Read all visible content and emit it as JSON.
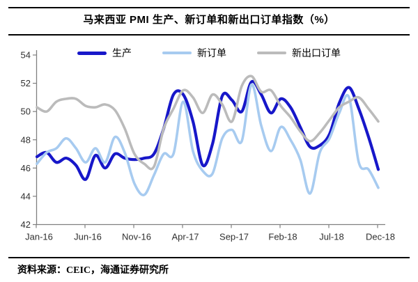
{
  "header": {
    "title": "马来西亚 PMI 生产、新订单和新出口订单指数（%）"
  },
  "footer": {
    "source": "资料来源：CEIC，海通证券研究所"
  },
  "colors": {
    "production": "#1717c9",
    "new_orders": "#a7cbf0",
    "new_export_orders": "#bbbbbb",
    "axis": "#7f7f7f",
    "tick_text": "#303030",
    "rule": "#000000"
  },
  "chart_data": {
    "type": "line",
    "title": "马来西亚 PMI 生产、新订单和新出口订单指数（%）",
    "xlabel": "",
    "ylabel": "",
    "ylim": [
      42,
      54
    ],
    "y_tick_step": 2,
    "y_tick_labels": [
      "42",
      "44",
      "46",
      "48",
      "50",
      "52",
      "54"
    ],
    "grid": false,
    "legend_position": "top",
    "x_labels": [
      "Jan-16",
      "Feb-16",
      "Mar-16",
      "Apr-16",
      "May-16",
      "Jun-16",
      "Jul-16",
      "Aug-16",
      "Sep-16",
      "Oct-16",
      "Nov-16",
      "Dec-16",
      "Jan-17",
      "Feb-17",
      "Mar-17",
      "Apr-17",
      "May-17",
      "Jun-17",
      "Jul-17",
      "Aug-17",
      "Sep-17",
      "Oct-17",
      "Nov-17",
      "Dec-17",
      "Jan-18",
      "Feb-18",
      "Mar-18",
      "Apr-18",
      "May-18",
      "Jun-18",
      "Jul-18",
      "Aug-18",
      "Sep-18",
      "Oct-18",
      "Nov-18",
      "Dec-18"
    ],
    "x_tick_indices": [
      0,
      5,
      10,
      15,
      20,
      25,
      30,
      35
    ],
    "x_tick_labels": [
      "Jan-16",
      "Jun-16",
      "Nov-16",
      "Apr-17",
      "Sep-17",
      "Feb-18",
      "Jul-18",
      "Dec-18"
    ],
    "series": [
      {
        "key": "production",
        "name": "生产",
        "color": "#1717c9",
        "width": 4.2,
        "values": [
          46.8,
          47.1,
          46.4,
          46.7,
          46.2,
          45.2,
          46.9,
          46.0,
          47.0,
          46.7,
          46.6,
          46.7,
          47.0,
          48.8,
          51.2,
          51.2,
          49.3,
          46.2,
          47.7,
          51.1,
          50.8,
          50.0,
          52.1,
          51.2,
          49.9,
          50.9,
          50.3,
          48.9,
          47.5,
          47.6,
          48.4,
          50.6,
          51.7,
          50.2,
          48.2,
          45.9
        ]
      },
      {
        "key": "new-orders",
        "name": "新订单",
        "color": "#a7cbf0",
        "width": 3.6,
        "values": [
          46.3,
          47.1,
          47.4,
          48.1,
          47.4,
          46.4,
          47.4,
          46.4,
          48.2,
          47.1,
          44.9,
          44.1,
          45.5,
          47.0,
          47.0,
          50.7,
          47.2,
          45.8,
          45.6,
          48.1,
          48.7,
          47.9,
          51.9,
          49.0,
          47.2,
          48.9,
          48.0,
          46.6,
          44.2,
          47.1,
          48.1,
          49.9,
          51.0,
          46.4,
          45.9,
          44.6
        ]
      },
      {
        "key": "new-export-orders",
        "name": "新出口订单",
        "color": "#bbbbbb",
        "width": 3.6,
        "values": [
          50.3,
          50.0,
          50.7,
          50.9,
          50.9,
          50.4,
          50.3,
          50.5,
          50.1,
          48.8,
          47.0,
          46.3,
          46.1,
          48.8,
          50.2,
          51.5,
          51.0,
          49.9,
          51.2,
          50.5,
          49.3,
          51.8,
          52.5,
          51.4,
          51.5,
          50.4,
          49.6,
          48.6,
          47.9,
          48.5,
          49.4,
          50.3,
          50.7,
          51.0,
          50.2,
          49.3
        ]
      }
    ]
  }
}
